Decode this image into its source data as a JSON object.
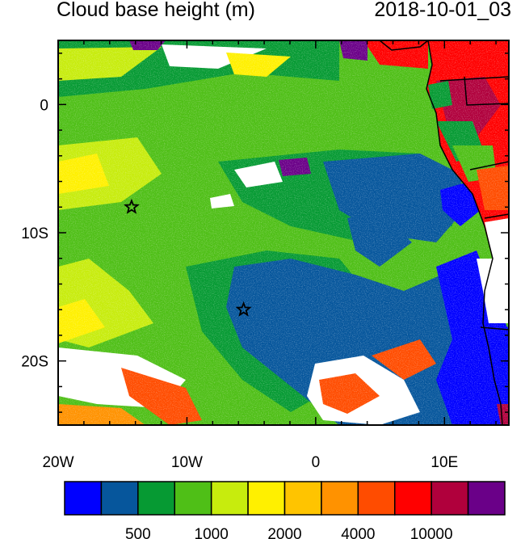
{
  "header": {
    "title": "Cloud base height (m)",
    "timestamp": "2018-10-01_03"
  },
  "map": {
    "region": {
      "lon_min": -20,
      "lon_max": 15,
      "lat_min": -25,
      "lat_max": 5
    },
    "x_ticks": [
      {
        "lon": -20,
        "label": "20W"
      },
      {
        "lon": -10,
        "label": "10W"
      },
      {
        "lon": 0,
        "label": "0"
      },
      {
        "lon": 10,
        "label": "10E"
      }
    ],
    "y_ticks": [
      {
        "lat": 0,
        "label": "0"
      },
      {
        "lat": -10,
        "label": "10S"
      },
      {
        "lat": -20,
        "label": "20S"
      }
    ],
    "markers": [
      {
        "name": "star-marker-north",
        "lon": -14.3,
        "lat": -8.0
      },
      {
        "name": "star-marker-south",
        "lon": -5.6,
        "lat": -16.0
      }
    ]
  },
  "colorbar": {
    "colors": [
      "#0000ff",
      "#06569c",
      "#069a33",
      "#4fbf17",
      "#c7ec0d",
      "#fff000",
      "#ffc400",
      "#ff9200",
      "#ff4c00",
      "#ff0000",
      "#b0003c",
      "#6a0088"
    ],
    "labels": [
      "500",
      "1000",
      "2000",
      "4000",
      "10000"
    ]
  }
}
